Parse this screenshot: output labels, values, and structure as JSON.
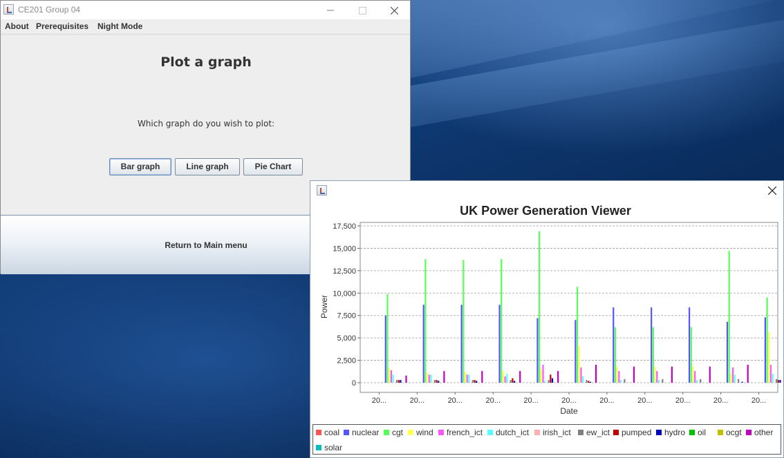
{
  "main_window": {
    "title": "CE201 Group 04",
    "menu": [
      "About",
      "Prerequisites",
      "Night Mode"
    ],
    "heading": "Plot a graph",
    "question": "Which graph do you wish to plot:",
    "buttons": {
      "bar": "Bar graph",
      "line": "Line graph",
      "pie": "Pie Chart"
    },
    "return_label": "Return to Main menu"
  },
  "chart_window": {
    "legend": [
      {
        "name": "coal",
        "color": "#ff5555"
      },
      {
        "name": "nuclear",
        "color": "#5555ff"
      },
      {
        "name": "cgt",
        "color": "#55ff55"
      },
      {
        "name": "wind",
        "color": "#ffff55"
      },
      {
        "name": "french_ict",
        "color": "#ff55ff"
      },
      {
        "name": "dutch_ict",
        "color": "#55ffff"
      },
      {
        "name": "irish_ict",
        "color": "#ffafaf"
      },
      {
        "name": "ew_ict",
        "color": "#808080"
      },
      {
        "name": "pumped",
        "color": "#c00000"
      },
      {
        "name": "hydro",
        "color": "#0000c0"
      },
      {
        "name": "oil",
        "color": "#00c000"
      },
      {
        "name": "ocgt",
        "color": "#c0c000"
      },
      {
        "name": "other",
        "color": "#c000c0"
      },
      {
        "name": "solar",
        "color": "#00c0c0"
      }
    ]
  },
  "chart_data": {
    "type": "bar",
    "title": "UK Power Generation Viewer",
    "xlabel": "Date",
    "ylabel": "Power",
    "ylim": [
      0,
      17500
    ],
    "yticks": [
      0,
      2500,
      5000,
      7500,
      10000,
      12500,
      15000,
      17500
    ],
    "ytick_labels": [
      "0",
      "2,500",
      "5,000",
      "7,500",
      "10,000",
      "12,500",
      "15,000",
      "17,500"
    ],
    "grid": true,
    "legend_position": "bottom",
    "categories": [
      "20...",
      "20...",
      "20...",
      "20...",
      "20...",
      "20...",
      "20...",
      "20...",
      "20...",
      "20...",
      "20..."
    ],
    "series": [
      {
        "name": "coal",
        "values": [
          0,
          0,
          0,
          0,
          0,
          0,
          0,
          0,
          0,
          0,
          0
        ]
      },
      {
        "name": "nuclear",
        "values": [
          7500,
          8700,
          8700,
          8700,
          7200,
          7000,
          8400,
          8400,
          8400,
          6800,
          7300
        ]
      },
      {
        "name": "cgt",
        "values": [
          9900,
          13800,
          13700,
          13800,
          16900,
          10700,
          6200,
          6200,
          6200,
          14700,
          9500
        ]
      },
      {
        "name": "wind",
        "values": [
          1600,
          1100,
          1200,
          1300,
          1500,
          4100,
          1800,
          1800,
          1800,
          1000,
          5600
        ]
      },
      {
        "name": "french_ict",
        "values": [
          1400,
          900,
          900,
          700,
          2000,
          1700,
          1300,
          1300,
          1300,
          1700,
          2000
        ]
      },
      {
        "name": "dutch_ict",
        "values": [
          900,
          900,
          900,
          1000,
          200,
          700,
          300,
          300,
          300,
          900,
          1000
        ]
      },
      {
        "name": "irish_ict",
        "values": [
          0,
          0,
          0,
          0,
          0,
          0,
          0,
          0,
          0,
          0,
          0
        ]
      },
      {
        "name": "ew_ict",
        "values": [
          300,
          300,
          300,
          300,
          300,
          300,
          400,
          400,
          400,
          400,
          400
        ]
      },
      {
        "name": "pumped",
        "values": [
          300,
          300,
          300,
          500,
          900,
          200,
          0,
          0,
          0,
          0,
          300
        ]
      },
      {
        "name": "hydro",
        "values": [
          300,
          200,
          200,
          200,
          500,
          100,
          0,
          0,
          0,
          100,
          300
        ]
      },
      {
        "name": "oil",
        "values": [
          0,
          0,
          0,
          0,
          0,
          0,
          0,
          0,
          0,
          0,
          0
        ]
      },
      {
        "name": "ocgt",
        "values": [
          0,
          0,
          0,
          0,
          0,
          0,
          0,
          0,
          0,
          0,
          0
        ]
      },
      {
        "name": "other",
        "values": [
          800,
          1300,
          1300,
          1300,
          1300,
          2000,
          1800,
          1800,
          1800,
          2000,
          2000
        ]
      },
      {
        "name": "solar",
        "values": [
          0,
          0,
          0,
          0,
          0,
          0,
          0,
          0,
          0,
          0,
          0
        ]
      }
    ]
  }
}
